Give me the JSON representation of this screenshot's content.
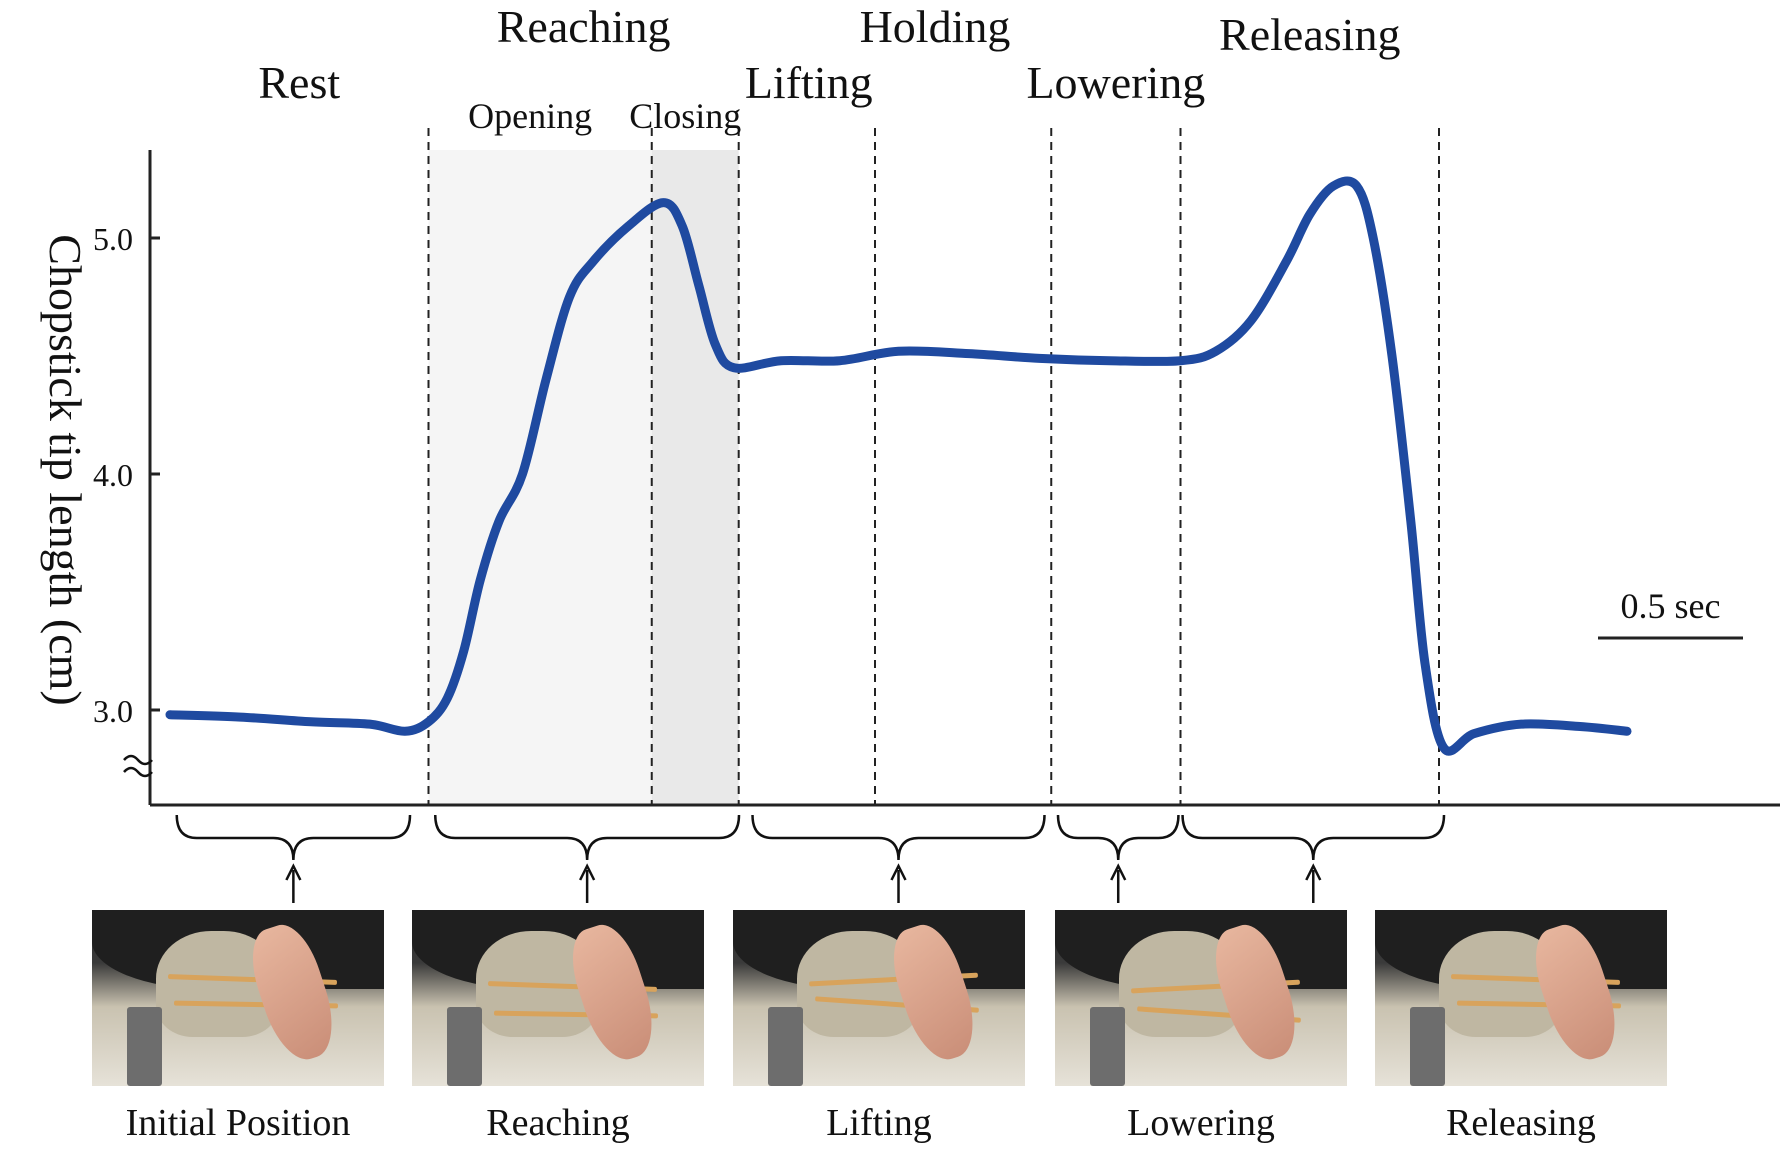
{
  "chart_data": {
    "type": "line",
    "title": "",
    "ylabel": "Chopstick tip length (cm)",
    "xlabel": "",
    "yticks": [
      "3.0",
      "4.0",
      "5.0"
    ],
    "ylim": [
      2.6,
      5.4
    ],
    "x_unit": "sec",
    "scale_bar": {
      "label": "0.5 sec",
      "value": 0.5
    },
    "series": [
      {
        "points": [
          [
            0.0,
            2.98
          ],
          [
            0.3,
            2.97
          ],
          [
            0.6,
            2.95
          ],
          [
            0.85,
            2.94
          ],
          [
            1.0,
            2.91
          ],
          [
            1.1,
            2.95
          ],
          [
            1.18,
            3.05
          ],
          [
            1.25,
            3.25
          ],
          [
            1.32,
            3.55
          ],
          [
            1.4,
            3.8
          ],
          [
            1.5,
            4.0
          ],
          [
            1.6,
            4.4
          ],
          [
            1.7,
            4.75
          ],
          [
            1.8,
            4.9
          ],
          [
            1.95,
            5.05
          ],
          [
            2.1,
            5.15
          ],
          [
            2.18,
            5.05
          ],
          [
            2.25,
            4.8
          ],
          [
            2.32,
            4.55
          ],
          [
            2.4,
            4.45
          ],
          [
            2.6,
            4.48
          ],
          [
            2.85,
            4.48
          ],
          [
            3.1,
            4.52
          ],
          [
            3.4,
            4.51
          ],
          [
            3.7,
            4.49
          ],
          [
            4.0,
            4.48
          ],
          [
            4.3,
            4.48
          ],
          [
            4.45,
            4.52
          ],
          [
            4.6,
            4.65
          ],
          [
            4.75,
            4.9
          ],
          [
            4.85,
            5.1
          ],
          [
            4.95,
            5.22
          ],
          [
            5.05,
            5.22
          ],
          [
            5.12,
            5.0
          ],
          [
            5.2,
            4.5
          ],
          [
            5.28,
            3.8
          ],
          [
            5.34,
            3.2
          ],
          [
            5.42,
            2.84
          ],
          [
            5.55,
            2.9
          ],
          [
            5.75,
            2.94
          ],
          [
            6.0,
            2.93
          ],
          [
            6.2,
            2.91
          ]
        ]
      }
    ],
    "phases_top": [
      {
        "label": "Rest",
        "tier": "low"
      },
      {
        "label": "Reaching",
        "tier": "high"
      },
      {
        "label": "Holding",
        "tier": "high"
      },
      {
        "label": "Releasing",
        "tier": "high"
      },
      {
        "label": "Lifting",
        "tier": "low"
      },
      {
        "label": "Lowering",
        "tier": "low"
      }
    ],
    "subphases": [
      {
        "label": "Opening"
      },
      {
        "label": "Closing"
      }
    ],
    "phase_boundaries_sec": [
      1.1,
      2.05,
      2.42,
      3.0,
      3.75,
      4.3,
      5.4
    ],
    "brackets": [
      {
        "from": 0.05,
        "to": 1.0
      },
      {
        "from": 1.15,
        "to": 2.4
      },
      {
        "from": 2.5,
        "to": 3.7
      },
      {
        "from": 3.8,
        "to": 4.27
      },
      {
        "from": 4.33,
        "to": 5.4
      }
    ],
    "captions": [
      "Initial Position",
      "Reaching",
      "Lifting",
      "Lowering",
      "Releasing"
    ]
  },
  "colors": {
    "line": "#1f4aa0",
    "line_light": "#5577b8",
    "shade_opening": "#f5f5f5",
    "shade_closing": "#e9e9e9",
    "axis": "#222222"
  },
  "photos": [
    {
      "name": "photo-initial-position"
    },
    {
      "name": "photo-reaching"
    },
    {
      "name": "photo-lifting"
    },
    {
      "name": "photo-lowering"
    },
    {
      "name": "photo-releasing"
    }
  ]
}
